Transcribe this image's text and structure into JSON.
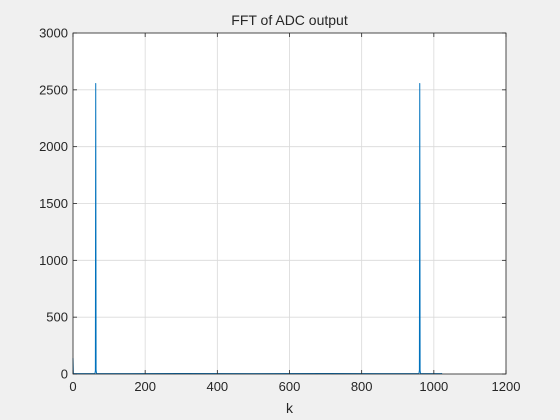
{
  "chart_data": {
    "type": "line",
    "title": "FFT of ADC output",
    "xlabel": "k",
    "ylabel": "",
    "xlim": [
      0,
      1200
    ],
    "ylim": [
      0,
      3000
    ],
    "xticks": [
      0,
      200,
      400,
      600,
      800,
      1000,
      1200
    ],
    "yticks": [
      0,
      500,
      1000,
      1500,
      2000,
      2500,
      3000
    ],
    "grid": true,
    "legend": "none",
    "series": [
      {
        "color": "#0072BD",
        "x": [
          0,
          1,
          2,
          3,
          60,
          61,
          62,
          63,
          64,
          65,
          66,
          67,
          300,
          500,
          700,
          957,
          958,
          959,
          960,
          961,
          962,
          963,
          964,
          1022,
          1023
        ],
        "y": [
          140,
          6,
          4,
          3,
          3,
          6,
          30,
          2556,
          35,
          8,
          4,
          3,
          4,
          3,
          4,
          3,
          4,
          8,
          35,
          2556,
          30,
          6,
          3,
          4,
          6
        ]
      }
    ]
  }
}
